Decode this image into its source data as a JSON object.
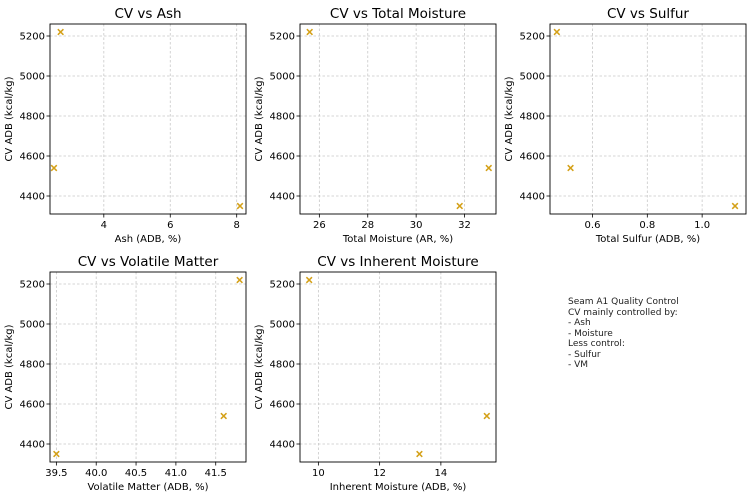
{
  "marker_color": "#d4a017",
  "chart_data": [
    {
      "type": "scatter",
      "title": "CV vs Ash",
      "xlabel": "Ash (ADB, %)",
      "ylabel": "CV ADB (kcal/kg)",
      "x": [
        2.7,
        2.5,
        8.1
      ],
      "y": [
        5220,
        4540,
        4350
      ],
      "xlim": [
        2.38,
        8.28
      ],
      "ylim": [
        4310,
        5260
      ],
      "xticks": [
        4,
        6,
        8
      ],
      "yticks": [
        4400,
        4600,
        4800,
        5000,
        5200
      ],
      "grid": true
    },
    {
      "type": "scatter",
      "title": "CV vs Total Moisture",
      "xlabel": "Total Moisture (AR, %)",
      "ylabel": "CV ADB (kcal/kg)",
      "x": [
        25.6,
        31.8,
        33.0
      ],
      "y": [
        5220,
        4350,
        4540
      ],
      "xlim": [
        25.2,
        33.3
      ],
      "ylim": [
        4310,
        5260
      ],
      "xticks": [
        26,
        28,
        30,
        32
      ],
      "yticks": [
        4400,
        4600,
        4800,
        5000,
        5200
      ],
      "grid": true
    },
    {
      "type": "scatter",
      "title": "CV vs Sulfur",
      "xlabel": "Total Sulfur (ADB, %)",
      "ylabel": "CV ADB (kcal/kg)",
      "x": [
        0.47,
        0.52,
        1.12
      ],
      "y": [
        5220,
        4540,
        4350
      ],
      "xlim": [
        0.445,
        1.16
      ],
      "ylim": [
        4310,
        5260
      ],
      "xticks": [
        0.6,
        0.8,
        1.0
      ],
      "yticks": [
        4400,
        4600,
        4800,
        5000,
        5200
      ],
      "grid": true
    },
    {
      "type": "scatter",
      "title": "CV vs Volatile Matter",
      "xlabel": "Volatile Matter (ADB, %)",
      "ylabel": "CV ADB (kcal/kg)",
      "x": [
        39.5,
        41.6,
        41.8
      ],
      "y": [
        4350,
        4540,
        5220
      ],
      "xlim": [
        39.42,
        41.88
      ],
      "ylim": [
        4310,
        5260
      ],
      "xticks": [
        39.5,
        40.0,
        40.5,
        41.0,
        41.5
      ],
      "yticks": [
        4400,
        4600,
        4800,
        5000,
        5200
      ],
      "grid": true
    },
    {
      "type": "scatter",
      "title": "CV vs Inherent Moisture",
      "xlabel": "Inherent Moisture (ADB, %)",
      "ylabel": "CV ADB (kcal/kg)",
      "x": [
        9.7,
        13.3,
        15.5
      ],
      "y": [
        5220,
        4350,
        4540
      ],
      "xlim": [
        9.4,
        15.8
      ],
      "ylim": [
        4310,
        5260
      ],
      "xticks": [
        10,
        12,
        14
      ],
      "yticks": [
        4400,
        4600,
        4800,
        5000,
        5200
      ],
      "grid": true
    }
  ],
  "summary": {
    "lines": [
      "Seam A1 Quality Control",
      "CV mainly controlled by:",
      "- Ash",
      "- Moisture",
      "Less control:",
      "- Sulfur",
      "- VM"
    ]
  }
}
